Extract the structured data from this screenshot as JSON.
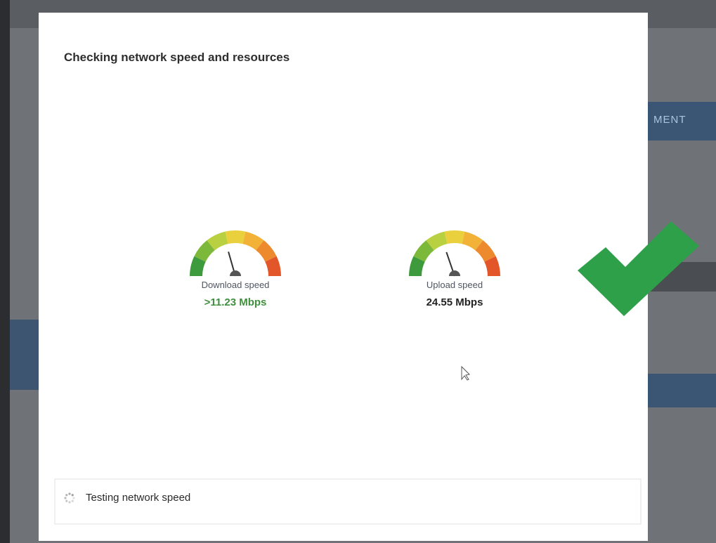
{
  "background": {
    "menu_fragment": "MENT"
  },
  "dialog": {
    "title": "Checking network speed and resources",
    "gauges": [
      {
        "label": "Download speed",
        "value": ">11.23 Mbps"
      },
      {
        "label": "Upload speed",
        "value": "24.55 Mbps"
      }
    ],
    "status": "Testing network speed"
  }
}
